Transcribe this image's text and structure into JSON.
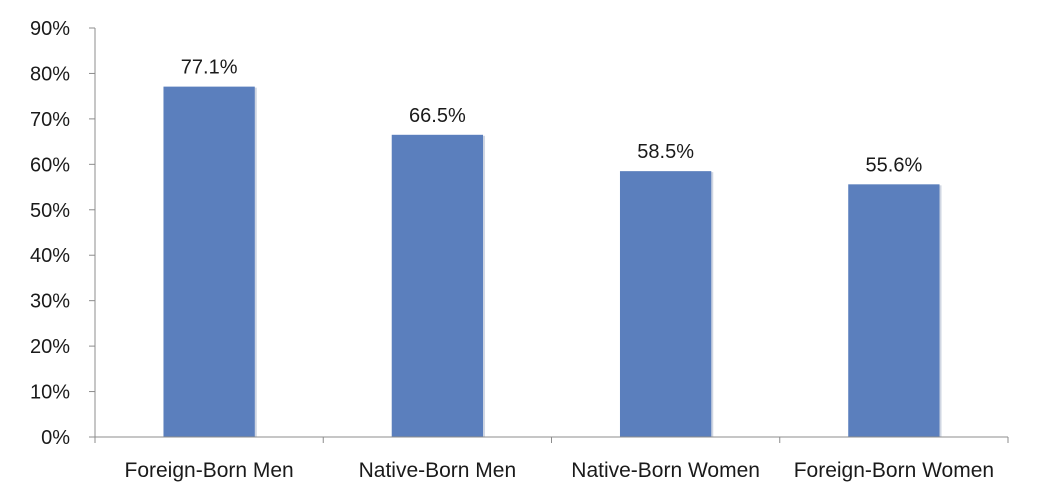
{
  "chart_data": {
    "type": "bar",
    "categories": [
      "Foreign-Born Men",
      "Native-Born Men",
      "Native-Born Women",
      "Foreign-Born Women"
    ],
    "values": [
      77.1,
      66.5,
      58.5,
      55.6
    ],
    "data_labels": [
      "77.1%",
      "66.5%",
      "58.5%",
      "55.6%"
    ],
    "ylim": [
      0,
      90
    ],
    "yticks": [
      0,
      10,
      20,
      30,
      40,
      50,
      60,
      70,
      80,
      90
    ],
    "ytick_labels": [
      "0%",
      "10%",
      "20%",
      "30%",
      "40%",
      "50%",
      "60%",
      "70%",
      "80%",
      "90%"
    ],
    "grid": false,
    "legend": "none",
    "bar_color": "#5b7fbd",
    "axis_color": "#8c8c8c",
    "text_color": "#1a1a1a"
  }
}
